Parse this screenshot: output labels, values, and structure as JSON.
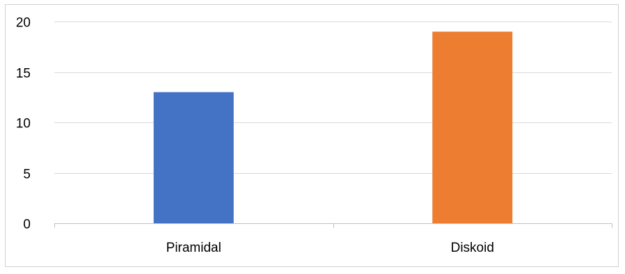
{
  "chart_data": {
    "type": "bar",
    "categories": [
      "Piramidal",
      "Diskoid"
    ],
    "values": [
      13,
      19
    ],
    "colors": [
      "#4472c4",
      "#ed7d31"
    ],
    "y_ticks": [
      "0",
      "5",
      "10",
      "15",
      "20"
    ],
    "ylim": [
      0,
      20
    ],
    "grid": true,
    "legend": "none",
    "title": "",
    "xlabel": "",
    "ylabel": ""
  }
}
